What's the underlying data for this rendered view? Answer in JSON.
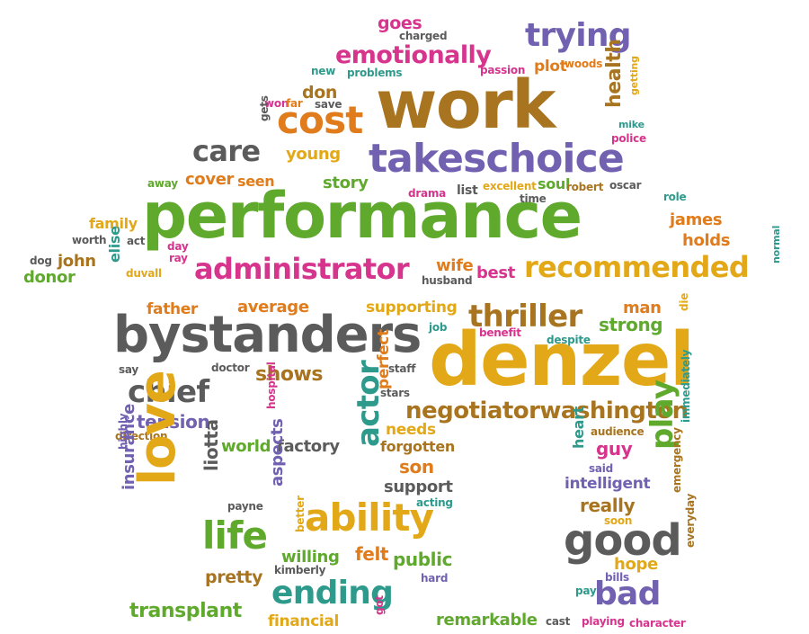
{
  "palette": {
    "green": "#5fa92d",
    "orange": "#e07c1b",
    "purple": "#7161b0",
    "magenta": "#d6348d",
    "teal": "#2e9a8c",
    "gray": "#5b5b5b",
    "gold": "#e2a818",
    "brown": "#a8741f",
    "red": "#dd4b26"
  },
  "words": [
    {
      "text": "performance",
      "color": "green"
    },
    {
      "text": "work",
      "color": "brown"
    },
    {
      "text": "denzel",
      "color": "gold"
    },
    {
      "text": "bystanders",
      "color": "gray"
    },
    {
      "text": "takeschoice",
      "color": "purple"
    },
    {
      "text": "cost",
      "color": "orange"
    },
    {
      "text": "care",
      "color": "gray"
    },
    {
      "text": "administrator",
      "color": "magenta"
    },
    {
      "text": "recommended",
      "color": "gold"
    },
    {
      "text": "trying",
      "color": "purple"
    },
    {
      "text": "emotionally",
      "color": "magenta"
    },
    {
      "text": "goes",
      "color": "magenta"
    },
    {
      "text": "charged",
      "color": "gray"
    },
    {
      "text": "plot",
      "color": "orange"
    },
    {
      "text": "passion",
      "color": "magenta"
    },
    {
      "text": "woods",
      "color": "orange"
    },
    {
      "text": "health",
      "color": "brown"
    },
    {
      "text": "getting",
      "color": "gold"
    },
    {
      "text": "mike",
      "color": "teal"
    },
    {
      "text": "police",
      "color": "magenta"
    },
    {
      "text": "new",
      "color": "teal"
    },
    {
      "text": "problems",
      "color": "teal"
    },
    {
      "text": "don",
      "color": "brown"
    },
    {
      "text": "save",
      "color": "gray"
    },
    {
      "text": "won",
      "color": "magenta"
    },
    {
      "text": "far",
      "color": "orange"
    },
    {
      "text": "gets",
      "color": "gray"
    },
    {
      "text": "young",
      "color": "gold"
    },
    {
      "text": "cover",
      "color": "orange"
    },
    {
      "text": "seen",
      "color": "orange"
    },
    {
      "text": "away",
      "color": "green"
    },
    {
      "text": "story",
      "color": "green"
    },
    {
      "text": "drama",
      "color": "magenta"
    },
    {
      "text": "list",
      "color": "gray"
    },
    {
      "text": "excellent",
      "color": "gold"
    },
    {
      "text": "soul",
      "color": "green"
    },
    {
      "text": "robert",
      "color": "brown"
    },
    {
      "text": "oscar",
      "color": "gray"
    },
    {
      "text": "time",
      "color": "gray"
    },
    {
      "text": "role",
      "color": "teal"
    },
    {
      "text": "family",
      "color": "gold"
    },
    {
      "text": "james",
      "color": "orange"
    },
    {
      "text": "holds",
      "color": "orange"
    },
    {
      "text": "worth",
      "color": "gray"
    },
    {
      "text": "act",
      "color": "gray"
    },
    {
      "text": "day",
      "color": "magenta"
    },
    {
      "text": "ray",
      "color": "magenta"
    },
    {
      "text": "dog",
      "color": "gray"
    },
    {
      "text": "john",
      "color": "brown"
    },
    {
      "text": "elise",
      "color": "teal"
    },
    {
      "text": "duvall",
      "color": "gold"
    },
    {
      "text": "donor",
      "color": "green"
    },
    {
      "text": "wife",
      "color": "orange"
    },
    {
      "text": "husband",
      "color": "gray"
    },
    {
      "text": "best",
      "color": "magenta"
    },
    {
      "text": "normal",
      "color": "teal"
    },
    {
      "text": "father",
      "color": "orange"
    },
    {
      "text": "average",
      "color": "orange"
    },
    {
      "text": "supporting",
      "color": "gold"
    },
    {
      "text": "job",
      "color": "teal"
    },
    {
      "text": "thriller",
      "color": "brown"
    },
    {
      "text": "man",
      "color": "orange"
    },
    {
      "text": "strong",
      "color": "green"
    },
    {
      "text": "die",
      "color": "gold"
    },
    {
      "text": "benefit",
      "color": "magenta"
    },
    {
      "text": "despite",
      "color": "teal"
    },
    {
      "text": "say",
      "color": "gray"
    },
    {
      "text": "doctor",
      "color": "gray"
    },
    {
      "text": "shows",
      "color": "brown"
    },
    {
      "text": "perfect",
      "color": "orange"
    },
    {
      "text": "staff",
      "color": "gray"
    },
    {
      "text": "stars",
      "color": "gray"
    },
    {
      "text": "chief",
      "color": "gray"
    },
    {
      "text": "hospital",
      "color": "magenta"
    },
    {
      "text": "tension",
      "color": "purple"
    },
    {
      "text": "negotiatorwashington",
      "color": "brown"
    },
    {
      "text": "needs",
      "color": "gold"
    },
    {
      "text": "actor",
      "color": "teal"
    },
    {
      "text": "direction",
      "color": "brown"
    },
    {
      "text": "world",
      "color": "green"
    },
    {
      "text": "factory",
      "color": "gray"
    },
    {
      "text": "forgotten",
      "color": "brown"
    },
    {
      "text": "heart",
      "color": "teal"
    },
    {
      "text": "audience",
      "color": "brown"
    },
    {
      "text": "guy",
      "color": "magenta"
    },
    {
      "text": "immediately",
      "color": "teal"
    },
    {
      "text": "highly",
      "color": "purple"
    },
    {
      "text": "love",
      "color": "gold"
    },
    {
      "text": "liotta",
      "color": "gray"
    },
    {
      "text": "son",
      "color": "orange"
    },
    {
      "text": "support",
      "color": "gray"
    },
    {
      "text": "said",
      "color": "purple"
    },
    {
      "text": "intelligent",
      "color": "purple"
    },
    {
      "text": "play",
      "color": "green"
    },
    {
      "text": "insurance",
      "color": "purple"
    },
    {
      "text": "payne",
      "color": "gray"
    },
    {
      "text": "aspects",
      "color": "purple"
    },
    {
      "text": "acting",
      "color": "teal"
    },
    {
      "text": "ability",
      "color": "gold"
    },
    {
      "text": "really",
      "color": "brown"
    },
    {
      "text": "soon",
      "color": "gold"
    },
    {
      "text": "emergency",
      "color": "brown"
    },
    {
      "text": "life",
      "color": "green"
    },
    {
      "text": "better",
      "color": "gold"
    },
    {
      "text": "good",
      "color": "gray"
    },
    {
      "text": "willing",
      "color": "green"
    },
    {
      "text": "felt",
      "color": "orange"
    },
    {
      "text": "public",
      "color": "green"
    },
    {
      "text": "hope",
      "color": "gold"
    },
    {
      "text": "everyday",
      "color": "brown"
    },
    {
      "text": "pretty",
      "color": "brown"
    },
    {
      "text": "kimberly",
      "color": "gray"
    },
    {
      "text": "hard",
      "color": "purple"
    },
    {
      "text": "bills",
      "color": "purple"
    },
    {
      "text": "ending",
      "color": "teal"
    },
    {
      "text": "pay",
      "color": "teal"
    },
    {
      "text": "bad",
      "color": "purple"
    },
    {
      "text": "transplant",
      "color": "green"
    },
    {
      "text": "financial",
      "color": "gold"
    },
    {
      "text": "got",
      "color": "magenta"
    },
    {
      "text": "remarkable",
      "color": "green"
    },
    {
      "text": "cast",
      "color": "gray"
    },
    {
      "text": "playing",
      "color": "magenta"
    },
    {
      "text": "character",
      "color": "magenta"
    }
  ]
}
